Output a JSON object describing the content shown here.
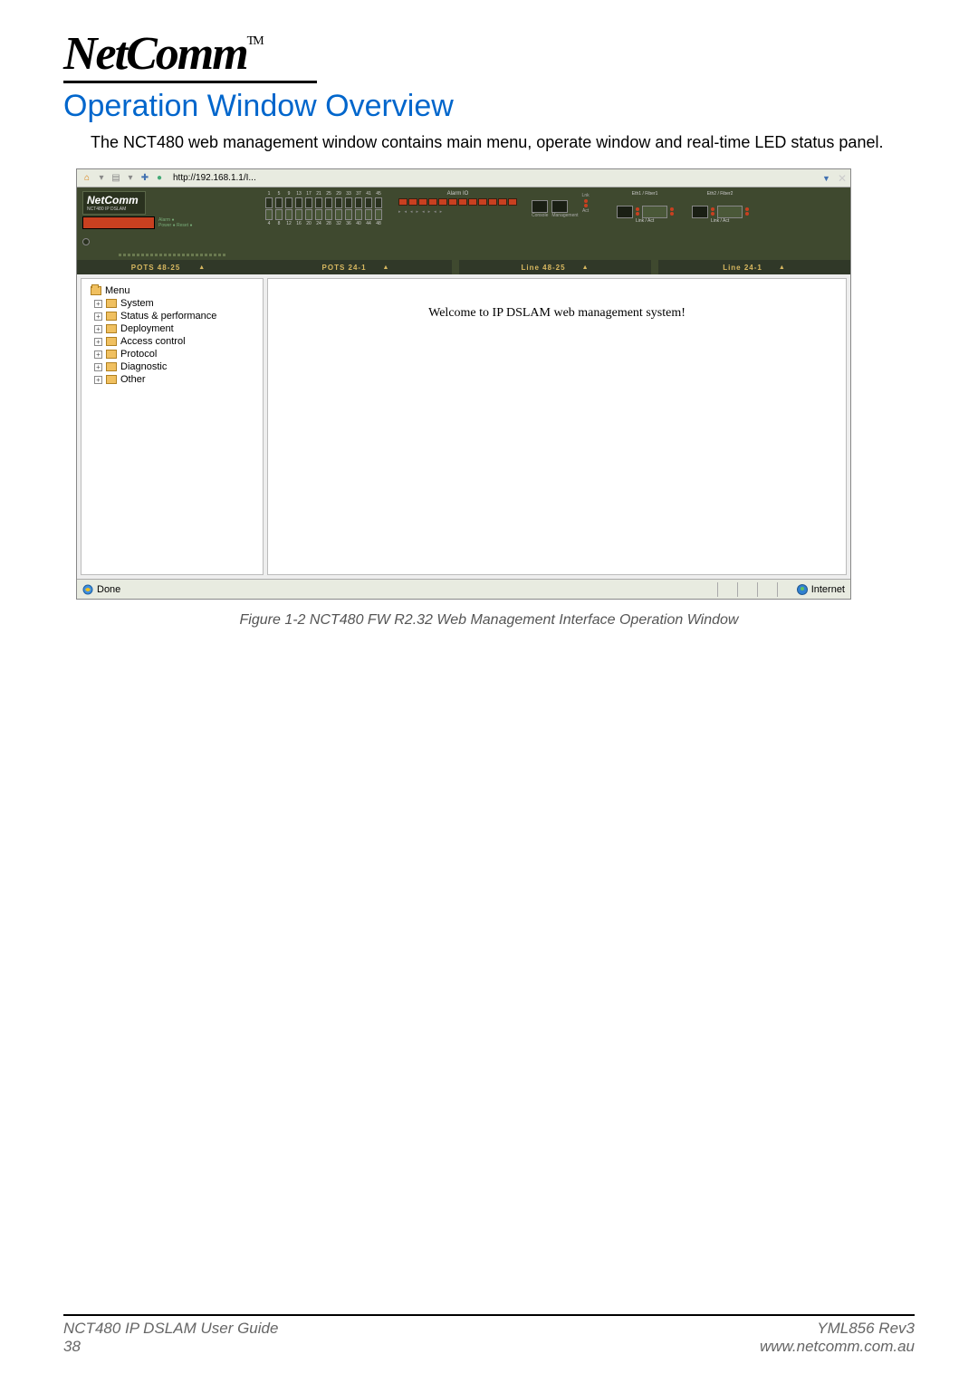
{
  "logo_text": "NetComm",
  "logo_tm": "TM",
  "heading": "Operation Window Overview",
  "intro": "The NCT480 web management window contains main menu, operate window and real-time LED status panel.",
  "address_bar": {
    "url": "http://192.168.1.1/I..."
  },
  "led_panel": {
    "brand": "NetComm",
    "brand_sub": "NCT480 IP DSLAM",
    "alarm_label": "Alarm",
    "power_label": "Power",
    "reset_label": "Reset",
    "left_tab": "POTS 48-25",
    "port_numbers_top": [
      "1",
      "5",
      "9",
      "13",
      "17",
      "21",
      "25",
      "29",
      "33",
      "37",
      "41",
      "45"
    ],
    "port_numbers_bot": [
      "4",
      "8",
      "12",
      "16",
      "20",
      "24",
      "28",
      "32",
      "36",
      "40",
      "44",
      "48"
    ],
    "alarm_io": "Alarm IO",
    "lnk": "Lnk",
    "console": "Console",
    "management": "Management",
    "act": "Act",
    "eth_fiber1": "Eth1 / Fiber1",
    "eth_fiber2": "Eth2 / Fiber2",
    "link_act": "Link / Act",
    "right_tabs": [
      "POTS 24-1",
      "Line 48-25",
      "Line 24-1"
    ]
  },
  "menu": {
    "root": "Menu",
    "items": [
      "System",
      "Status & performance",
      "Deployment",
      "Access control",
      "Protocol",
      "Diagnostic",
      "Other"
    ]
  },
  "welcome": "Welcome to IP DSLAM web management system!",
  "statusbar": {
    "done": "Done",
    "zone": "Internet"
  },
  "caption": "Figure 1-2 NCT480 FW R2.32 Web Management Interface Operation Window",
  "footer": {
    "left_top": "NCT480 IP DSLAM User Guide",
    "left_bottom": "38",
    "right_top": "YML856 Rev3",
    "right_bottom": "www.netcomm.com.au"
  },
  "colors": {
    "heading": "#0066cc",
    "panel_bg": "#3f492f",
    "tab_text": "#d8b860",
    "alarm_cell": "#c84020"
  }
}
